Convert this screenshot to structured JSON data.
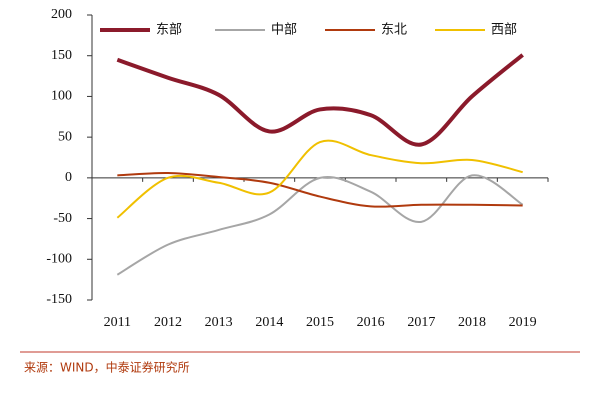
{
  "chart_data": {
    "type": "line",
    "categories": [
      "2011",
      "2012",
      "2013",
      "2014",
      "2015",
      "2016",
      "2017",
      "2018",
      "2019"
    ],
    "series": [
      {
        "name": "东部",
        "color": "#8b1a2b",
        "values": [
          145,
          123,
          102,
          57,
          84,
          77,
          41,
          100,
          151
        ]
      },
      {
        "name": "中部",
        "color": "#a6a6a6",
        "values": [
          -119,
          -82,
          -64,
          -45,
          0,
          -17,
          -54,
          3,
          -33
        ]
      },
      {
        "name": "东北",
        "color": "#b03a0e",
        "values": [
          3,
          6,
          1,
          -6,
          -23,
          -35,
          -33,
          -33,
          -34
        ]
      },
      {
        "name": "西部",
        "color": "#f0c000",
        "values": [
          -49,
          0,
          -6,
          -18,
          44,
          28,
          18,
          22,
          7
        ]
      }
    ],
    "ylim": [
      -150,
      200
    ],
    "yticks": [
      -150,
      -100,
      -50,
      0,
      50,
      100,
      150,
      200
    ],
    "legend": "top",
    "source": "来源：WIND，中泰证券研究所"
  }
}
